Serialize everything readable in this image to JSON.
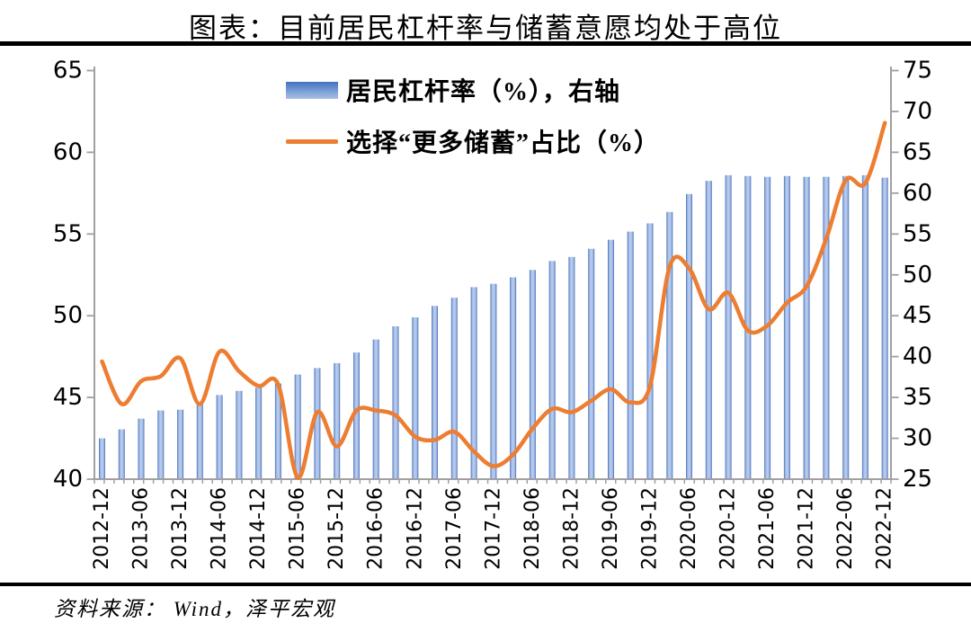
{
  "page": {
    "title": "图表：目前居民杠杆率与储蓄意愿均处于高位",
    "source": "资料来源：  Wind，泽平宏观"
  },
  "colors": {
    "bar_edge": "#3F6AB4",
    "bar_mid": "#9FB8E4",
    "bar_center": "#BDCEEE",
    "line": "#ED7D31",
    "axis": "#A0A0A0",
    "text": "#000000"
  },
  "chart_data": {
    "type": "combo-bar-line",
    "title": "图表：目前居民杠杆率与储蓄意愿均处于高位",
    "grid": false,
    "legend_position": "top-center",
    "categories": [
      "2012-12",
      "2013-03",
      "2013-06",
      "2013-09",
      "2013-12",
      "2014-03",
      "2014-06",
      "2014-09",
      "2014-12",
      "2015-03",
      "2015-06",
      "2015-09",
      "2015-12",
      "2016-03",
      "2016-06",
      "2016-09",
      "2016-12",
      "2017-03",
      "2017-06",
      "2017-09",
      "2017-12",
      "2018-03",
      "2018-06",
      "2018-09",
      "2018-12",
      "2019-03",
      "2019-06",
      "2019-09",
      "2019-12",
      "2020-03",
      "2020-06",
      "2020-09",
      "2020-12",
      "2021-03",
      "2021-06",
      "2021-09",
      "2021-12",
      "2022-03",
      "2022-06",
      "2022-09",
      "2022-12"
    ],
    "x_tick_label_step": 2,
    "left_axis": {
      "min": 40,
      "max": 65,
      "step": 5,
      "ticks": [
        40,
        45,
        50,
        55,
        60,
        65
      ]
    },
    "right_axis": {
      "min": 25,
      "max": 75,
      "step": 5,
      "ticks": [
        25,
        30,
        35,
        40,
        45,
        50,
        55,
        60,
        65,
        70,
        75
      ]
    },
    "series": [
      {
        "name": "居民杠杆率（%），右轴",
        "type": "bar",
        "axis": "right",
        "values": [
          30.0,
          31.1,
          32.4,
          33.4,
          33.5,
          34.4,
          35.3,
          35.8,
          36.2,
          36.7,
          37.8,
          38.6,
          39.2,
          40.5,
          42.1,
          43.7,
          44.8,
          46.2,
          47.2,
          48.5,
          48.9,
          49.7,
          50.6,
          51.7,
          52.2,
          53.2,
          54.3,
          55.3,
          56.3,
          57.7,
          59.9,
          61.5,
          62.2,
          62.1,
          62.0,
          62.1,
          62.0,
          62.0,
          62.1,
          62.2,
          61.9
        ]
      },
      {
        "name": "选择“更多储蓄”占比（%）",
        "type": "line",
        "axis": "left",
        "values": [
          47.2,
          44.6,
          46.0,
          46.3,
          47.4,
          44.6,
          47.8,
          46.6,
          45.7,
          45.8,
          40.1,
          44.1,
          42.0,
          44.2,
          44.2,
          43.9,
          42.6,
          42.4,
          42.9,
          41.7,
          40.8,
          41.5,
          43.1,
          44.3,
          44.1,
          44.8,
          45.5,
          44.7,
          45.7,
          53.0,
          52.9,
          50.4,
          51.4,
          49.1,
          49.4,
          50.8,
          51.8,
          54.7,
          58.3,
          58.1,
          61.8
        ]
      }
    ]
  }
}
